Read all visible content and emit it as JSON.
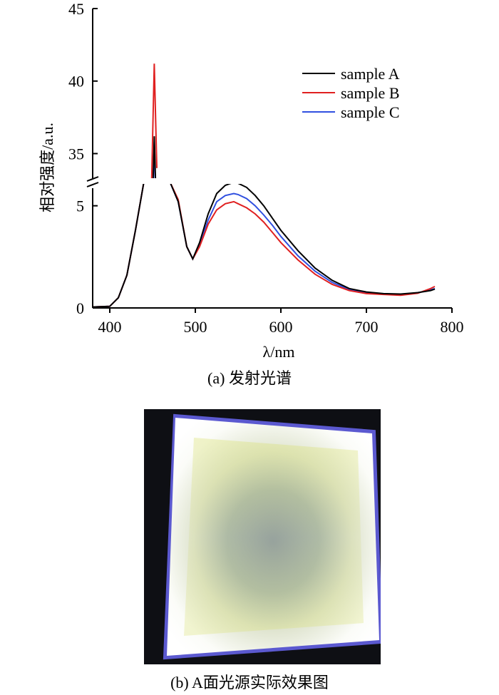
{
  "chart_data": {
    "type": "line",
    "xlabel": "λ/nm",
    "ylabel": "相对强度/a.u.",
    "xlim": [
      380,
      800
    ],
    "x_ticks": [
      "400",
      "500",
      "600",
      "700",
      "800"
    ],
    "ylim_lower": [
      0,
      6
    ],
    "ylim_upper": [
      33.5,
      45
    ],
    "y_ticks_lower": [
      "0",
      "5"
    ],
    "y_ticks_upper": [
      "35",
      "40",
      "45"
    ],
    "axis_break": "y between 6 and 33.5",
    "legend_position": "top-right",
    "x": [
      380,
      400,
      410,
      420,
      430,
      440,
      447,
      452,
      455,
      458,
      463,
      470,
      480,
      490,
      497,
      505,
      515,
      525,
      535,
      545,
      550,
      560,
      570,
      580,
      590,
      600,
      620,
      640,
      660,
      680,
      700,
      720,
      740,
      760,
      775,
      780
    ],
    "series": [
      {
        "name": "sample A",
        "color": "#000000",
        "values": [
          0.05,
          0.08,
          0.5,
          1.6,
          3.8,
          9.0,
          25,
          36.2,
          30,
          24,
          12,
          8.5,
          5.2,
          3.0,
          2.4,
          3.2,
          4.6,
          5.6,
          6.0,
          6.15,
          6.1,
          5.9,
          5.5,
          5.0,
          4.4,
          3.8,
          2.8,
          1.95,
          1.35,
          0.95,
          0.78,
          0.7,
          0.68,
          0.75,
          0.85,
          0.92
        ]
      },
      {
        "name": "sample B",
        "color": "#e02020",
        "values": [
          0.05,
          0.08,
          0.5,
          1.6,
          3.8,
          9.0,
          28,
          41.2,
          34,
          27,
          13,
          8.8,
          5.3,
          3.0,
          2.4,
          3.0,
          4.1,
          4.8,
          5.1,
          5.2,
          5.1,
          4.9,
          4.6,
          4.2,
          3.7,
          3.2,
          2.35,
          1.65,
          1.15,
          0.85,
          0.7,
          0.66,
          0.62,
          0.72,
          0.95,
          1.05
        ]
      },
      {
        "name": "sample C",
        "color": "#3050e0",
        "values": [
          0.05,
          0.08,
          0.5,
          1.6,
          3.8,
          9.0,
          24,
          35.8,
          29,
          23,
          12,
          8.5,
          5.2,
          3.0,
          2.4,
          3.1,
          4.3,
          5.2,
          5.5,
          5.6,
          5.55,
          5.35,
          5.0,
          4.55,
          4.05,
          3.5,
          2.55,
          1.8,
          1.25,
          0.9,
          0.74,
          0.68,
          0.66,
          0.74,
          0.88,
          0.95
        ]
      }
    ]
  },
  "captions": {
    "a": "(a) 发射光谱",
    "b": "(b) A面光源实际效果图"
  }
}
